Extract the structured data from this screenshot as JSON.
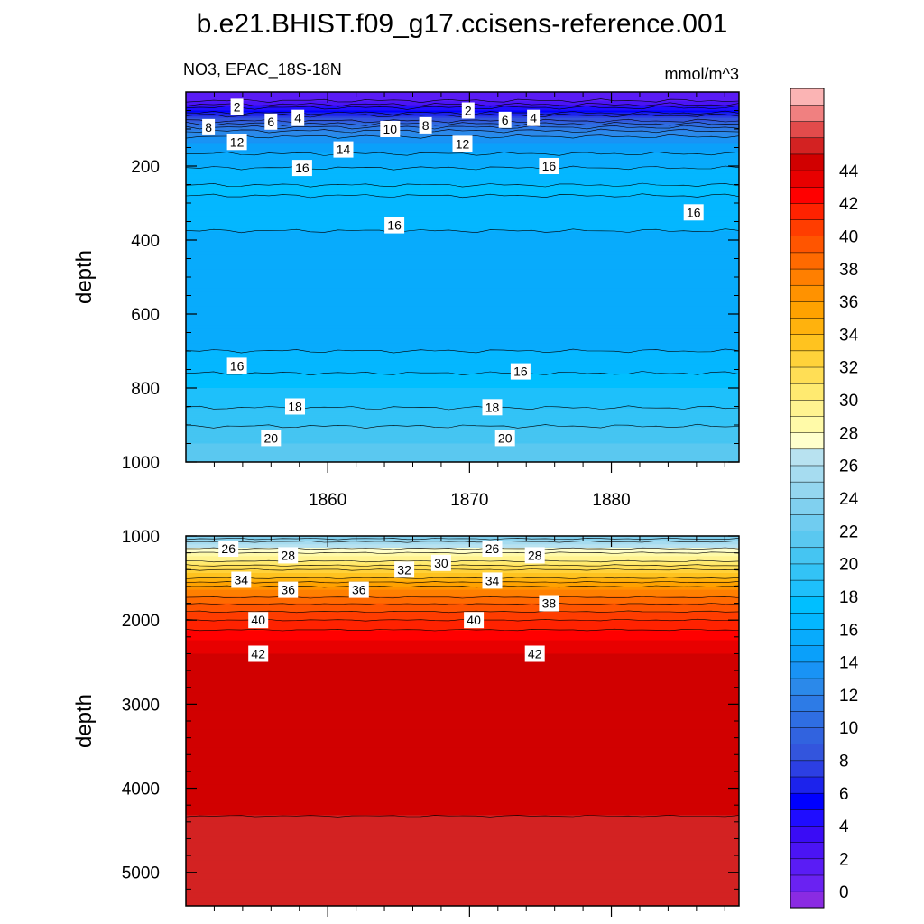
{
  "chart_data": [
    {
      "type": "contour",
      "panel": "upper",
      "title": "b.e21.BHIST.f09_g17.ccisens-reference.001",
      "left_label": "NO3, EPAC_18S-18N",
      "right_label": "mmol/m^3",
      "xlabel": "",
      "ylabel": "depth",
      "xlim": [
        1850,
        1889
      ],
      "ylim": [
        0,
        1000
      ],
      "y_reversed": true,
      "x_tick_labels": [
        "1860",
        "1870",
        "1880"
      ],
      "y_tick_labels": [
        "200",
        "400",
        "600",
        "800",
        "1000"
      ],
      "depth_profile": [
        {
          "depth": 10,
          "value": 0
        },
        {
          "depth": 30,
          "value": 1.5
        },
        {
          "depth": 50,
          "value": 4
        },
        {
          "depth": 70,
          "value": 7
        },
        {
          "depth": 90,
          "value": 9.5
        },
        {
          "depth": 110,
          "value": 11.5
        },
        {
          "depth": 140,
          "value": 13
        },
        {
          "depth": 180,
          "value": 14.5
        },
        {
          "depth": 230,
          "value": 15.5
        },
        {
          "depth": 260,
          "value": 16.2
        },
        {
          "depth": 330,
          "value": 15.5
        },
        {
          "depth": 420,
          "value": 14.5
        },
        {
          "depth": 600,
          "value": 14
        },
        {
          "depth": 660,
          "value": 14.5
        },
        {
          "depth": 740,
          "value": 15.5
        },
        {
          "depth": 800,
          "value": 17
        },
        {
          "depth": 880,
          "value": 18.5
        },
        {
          "depth": 950,
          "value": 20
        },
        {
          "depth": 1000,
          "value": 21
        }
      ],
      "contour_labels": [
        {
          "text": "2",
          "x": 1853.6,
          "depth": 40
        },
        {
          "text": "8",
          "x": 1851.6,
          "depth": 95
        },
        {
          "text": "6",
          "x": 1856.0,
          "depth": 80
        },
        {
          "text": "4",
          "x": 1857.9,
          "depth": 70
        },
        {
          "text": "12",
          "x": 1853.6,
          "depth": 135
        },
        {
          "text": "14",
          "x": 1861.1,
          "depth": 155
        },
        {
          "text": "16",
          "x": 1858.2,
          "depth": 205
        },
        {
          "text": "10",
          "x": 1864.4,
          "depth": 100
        },
        {
          "text": "8",
          "x": 1866.9,
          "depth": 90
        },
        {
          "text": "2",
          "x": 1869.9,
          "depth": 50
        },
        {
          "text": "6",
          "x": 1872.5,
          "depth": 75
        },
        {
          "text": "4",
          "x": 1874.5,
          "depth": 70
        },
        {
          "text": "12",
          "x": 1869.5,
          "depth": 140
        },
        {
          "text": "16",
          "x": 1875.6,
          "depth": 200
        },
        {
          "text": "16",
          "x": 1864.7,
          "depth": 360
        },
        {
          "text": "16",
          "x": 1885.8,
          "depth": 325
        },
        {
          "text": "16",
          "x": 1853.6,
          "depth": 740
        },
        {
          "text": "16",
          "x": 1873.6,
          "depth": 755
        },
        {
          "text": "18",
          "x": 1857.7,
          "depth": 850
        },
        {
          "text": "18",
          "x": 1871.6,
          "depth": 852
        },
        {
          "text": "20",
          "x": 1856.0,
          "depth": 935
        },
        {
          "text": "20",
          "x": 1872.5,
          "depth": 935
        }
      ]
    },
    {
      "type": "contour",
      "panel": "lower",
      "xlabel": "",
      "ylabel": "depth",
      "xlim": [
        1850,
        1889
      ],
      "ylim": [
        1000,
        5400
      ],
      "y_reversed": true,
      "y_tick_labels": [
        "1000",
        "2000",
        "3000",
        "4000",
        "5000"
      ],
      "depth_profile": [
        {
          "depth": 1000,
          "value": 22
        },
        {
          "depth": 1100,
          "value": 25
        },
        {
          "depth": 1250,
          "value": 28
        },
        {
          "depth": 1450,
          "value": 32
        },
        {
          "depth": 1650,
          "value": 36
        },
        {
          "depth": 1850,
          "value": 38.5
        },
        {
          "depth": 2050,
          "value": 40.5
        },
        {
          "depth": 2250,
          "value": 42
        },
        {
          "depth": 2400,
          "value": 43
        },
        {
          "depth": 4320,
          "value": 43.5
        },
        {
          "depth": 4340,
          "value": 44.5
        },
        {
          "depth": 5400,
          "value": 44.5
        }
      ],
      "contour_labels": [
        {
          "text": "26",
          "x": 1853.0,
          "depth": 1150
        },
        {
          "text": "28",
          "x": 1857.2,
          "depth": 1230
        },
        {
          "text": "26",
          "x": 1871.6,
          "depth": 1150
        },
        {
          "text": "28",
          "x": 1874.6,
          "depth": 1230
        },
        {
          "text": "30",
          "x": 1868.0,
          "depth": 1320
        },
        {
          "text": "32",
          "x": 1865.4,
          "depth": 1400
        },
        {
          "text": "34",
          "x": 1853.9,
          "depth": 1520
        },
        {
          "text": "34",
          "x": 1871.6,
          "depth": 1530
        },
        {
          "text": "36",
          "x": 1857.2,
          "depth": 1640
        },
        {
          "text": "36",
          "x": 1862.2,
          "depth": 1640
        },
        {
          "text": "38",
          "x": 1875.6,
          "depth": 1800
        },
        {
          "text": "40",
          "x": 1855.1,
          "depth": 2000
        },
        {
          "text": "40",
          "x": 1870.3,
          "depth": 2000
        },
        {
          "text": "42",
          "x": 1855.1,
          "depth": 2400
        },
        {
          "text": "42",
          "x": 1874.6,
          "depth": 2400
        }
      ]
    }
  ],
  "colorbar": {
    "tick_labels": [
      "0",
      "2",
      "4",
      "6",
      "8",
      "10",
      "12",
      "14",
      "16",
      "18",
      "20",
      "22",
      "24",
      "26",
      "28",
      "30",
      "32",
      "34",
      "36",
      "38",
      "40",
      "42",
      "44"
    ],
    "levels": [
      -1,
      0,
      1,
      2,
      3,
      4,
      5,
      6,
      7,
      8,
      9,
      10,
      11,
      12,
      13,
      14,
      15,
      16,
      17,
      18,
      19,
      20,
      21,
      22,
      23,
      24,
      25,
      26,
      27,
      28,
      29,
      30,
      31,
      32,
      33,
      34,
      35,
      36,
      37,
      38,
      39,
      40,
      41,
      42,
      43,
      44,
      45,
      46
    ],
    "colors": [
      "#8a2be2",
      "#6a22f2",
      "#5a1cf5",
      "#4b14f5",
      "#3a0cf5",
      "#1f0dff",
      "#0000ff",
      "#1c23ec",
      "#2c3fe3",
      "#3355dd",
      "#3163df",
      "#2f6ee2",
      "#2d7be6",
      "#2b89ea",
      "#1993f5",
      "#0aa0fa",
      "#08abfc",
      "#04b7ff",
      "#00bfff",
      "#1ec0fb",
      "#33c3f6",
      "#45c5f2",
      "#5ac8f0",
      "#70ccf0",
      "#80d0ef",
      "#94d6ef",
      "#a6dcf0",
      "#b8e2f0",
      "#ffffcc",
      "#fffaa8",
      "#fff390",
      "#ffea70",
      "#ffde55",
      "#ffd23a",
      "#ffc31f",
      "#ffb20d",
      "#ffa200",
      "#ff9200",
      "#ff7f00",
      "#ff6a00",
      "#ff5500",
      "#ff3d00",
      "#ff2200",
      "#ff0000",
      "#e80000",
      "#d10000",
      "#d32222",
      "#e24b4b",
      "#f08080",
      "#fbb4b4"
    ]
  }
}
